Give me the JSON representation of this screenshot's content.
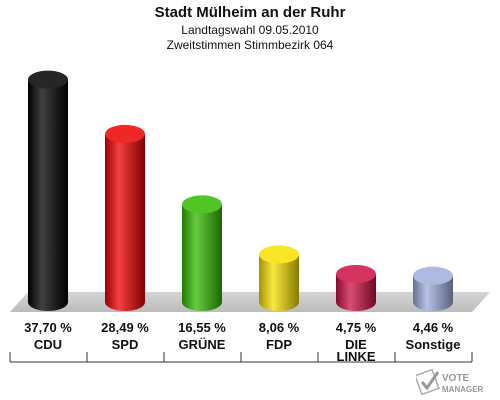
{
  "title": "Stadt Mülheim an der Ruhr",
  "subtitle1": "Landtagswahl 09.05.2010",
  "subtitle2": "Zweitstimmen Stimmbezirk 064",
  "chart_data": {
    "type": "bar",
    "categories": [
      "CDU",
      "SPD",
      "GRÜNE",
      "FDP",
      "DIE LINKE",
      "Sonstige"
    ],
    "category_lines": [
      [
        "CDU"
      ],
      [
        "SPD"
      ],
      [
        "GRÜNE"
      ],
      [
        "FDP"
      ],
      [
        "DIE",
        "LINKE"
      ],
      [
        "Sonstige"
      ]
    ],
    "values": [
      37.7,
      28.49,
      16.55,
      8.06,
      4.75,
      4.46
    ],
    "value_labels": [
      "37,70 %",
      "28,49 %",
      "16,55 %",
      "8,06 %",
      "4,75 %",
      "4,46 %"
    ],
    "colors": [
      "#000000",
      "#ee0000",
      "#33bb00",
      "#f5e000",
      "#cc1144",
      "#a0aedd"
    ],
    "title": "Stadt Mülheim an der Ruhr",
    "xlabel": "",
    "ylabel": "",
    "ylim": [
      0,
      40
    ],
    "grid": false,
    "legend": "none"
  },
  "logo": {
    "line1": "VOTE",
    "line2": "MANAGER"
  }
}
